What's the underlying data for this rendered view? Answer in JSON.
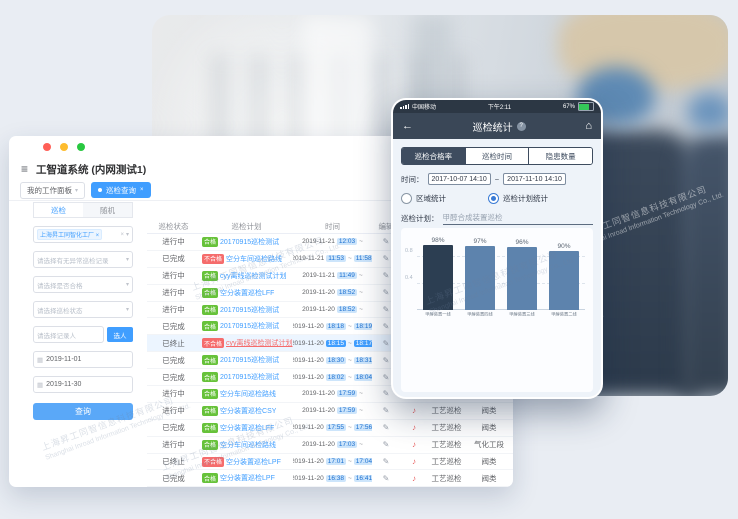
{
  "watermark": {
    "zh": "上海昇工同智信息科技有限公司",
    "en": "Shanghai Inroad Information Technology Co., Ltd."
  },
  "icons": {
    "hamburger": "≡",
    "caret": "▾",
    "close": "×",
    "back": "←",
    "home": "⌂",
    "help": "?",
    "calendar": "▦",
    "edit": "✎",
    "record": "♪",
    "tilde": "~",
    "dash": "~"
  },
  "desktop": {
    "app_title": "工智道系统 (内网测试1)",
    "workspace_tab": "我的工作面板",
    "active_tab": "巡检查询",
    "sidebar": {
      "tabs": [
        "巡检",
        "随机"
      ],
      "org_tag": "上海昇工同智化工厂",
      "selects": [
        "请选择有无异常巡检记录",
        "请选择是否合格",
        "请选择巡检状态"
      ],
      "recorder_placeholder": "请选择记录人",
      "pick_person_button": "选人",
      "date_from": "2019-11-01",
      "date_to": "2019-11-30",
      "search_button": "查询"
    },
    "table": {
      "headers": [
        "巡检状态",
        "巡检计划",
        "时间",
        "编辑",
        "",
        "",
        ""
      ],
      "rows": [
        {
          "status": "进行中",
          "badge": "合格",
          "ok": true,
          "plan": "20170915巡检测试",
          "date": "2019-11-21",
          "start": "12:03",
          "end": "",
          "type": "工艺巡检",
          "section": "阀类"
        },
        {
          "status": "已完成",
          "badge": "不合格",
          "ok": false,
          "plan": "空分车间巡检路线",
          "date": "2019-11-21",
          "start": "11:53",
          "end": "11:58",
          "type": "工艺巡检",
          "section": "阀类"
        },
        {
          "status": "进行中",
          "badge": "合格",
          "ok": true,
          "plan": "cyy离线巡检测试计划",
          "date": "2019-11-21",
          "start": "11:49",
          "end": "",
          "type": "工艺巡检",
          "section": "阀类"
        },
        {
          "status": "进行中",
          "badge": "合格",
          "ok": true,
          "plan": "空分装置巡检LFF",
          "date": "2019-11-20",
          "start": "18:52",
          "end": "",
          "type": "工艺巡检",
          "section": "阀类"
        },
        {
          "status": "进行中",
          "badge": "合格",
          "ok": true,
          "plan": "20170915巡检测试",
          "date": "2019-11-20",
          "start": "18:52",
          "end": "",
          "type": "工艺巡检",
          "section": "阀类"
        },
        {
          "status": "已完成",
          "badge": "合格",
          "ok": true,
          "plan": "20170915巡检测试",
          "date": "2019-11-20",
          "start": "18:18",
          "end": "18:19",
          "type": "工艺巡检",
          "section": "阀类"
        },
        {
          "status": "已终止",
          "badge": "不合格",
          "ok": false,
          "plan": "cyy离线巡检测试计划",
          "date": "2019-11-20",
          "start": "18:15",
          "end": "18:17",
          "selected": true,
          "plan_red": true,
          "type": "工艺巡检",
          "section": "阀类"
        },
        {
          "status": "已完成",
          "badge": "合格",
          "ok": true,
          "plan": "20170915巡检测试",
          "date": "2019-11-20",
          "start": "18:30",
          "end": "18:31",
          "type": "工艺巡检",
          "section": "阀类"
        },
        {
          "status": "已完成",
          "badge": "合格",
          "ok": true,
          "plan": "20170915巡检测试",
          "date": "2019-11-20",
          "start": "18:02",
          "end": "18:04",
          "type": "工艺巡检",
          "section": "阀类"
        },
        {
          "status": "进行中",
          "badge": "合格",
          "ok": true,
          "plan": "空分车间巡检路线",
          "date": "2019-11-20",
          "start": "17:59",
          "end": "",
          "type": "工艺巡检",
          "section": "阀类"
        },
        {
          "status": "进行中",
          "badge": "合格",
          "ok": true,
          "plan": "空分装置巡检CSY",
          "date": "2019-11-20",
          "start": "17:59",
          "end": "",
          "type": "工艺巡检",
          "section": "阀类"
        },
        {
          "status": "已完成",
          "badge": "合格",
          "ok": true,
          "plan": "空分装置巡检LFF",
          "date": "2019-11-20",
          "start": "17:55",
          "end": "17:56",
          "type": "工艺巡检",
          "section": "阀类"
        },
        {
          "status": "进行中",
          "badge": "合格",
          "ok": true,
          "plan": "空分车间巡检路线",
          "date": "2019-11-20",
          "start": "17:03",
          "end": "",
          "type": "工艺巡检",
          "section": "气化工段"
        },
        {
          "status": "已终止",
          "badge": "不合格",
          "ok": false,
          "plan": "空分装置巡检LPF",
          "date": "2019-11-20",
          "start": "17:01",
          "end": "17:04",
          "type": "工艺巡检",
          "section": "阀类"
        },
        {
          "status": "已完成",
          "badge": "合格",
          "ok": true,
          "plan": "空分装置巡检LPF",
          "date": "2019-11-20",
          "start": "16:38",
          "end": "16:41",
          "type": "工艺巡检",
          "section": "阀类"
        },
        {
          "status": "已终止",
          "badge": "不合格",
          "ok": false,
          "plan": "空分装置巡检LPF",
          "date": "2019-11-20",
          "start": "14:48",
          "end": "14:55",
          "type": "工艺巡检",
          "section": "阀类"
        }
      ]
    }
  },
  "phone": {
    "status_bar": {
      "carrier": "中国移动",
      "time": "下午2:11",
      "battery": "67%"
    },
    "nav": {
      "title": "巡检统计"
    },
    "segments": [
      {
        "label": "巡检合格率",
        "active": true
      },
      {
        "label": "巡检时间",
        "active": false
      },
      {
        "label": "隐患数量",
        "active": false
      }
    ],
    "time_label": "时间：",
    "date_from": "2017-10-07 14:10",
    "date_to": "2017-11-10 14:10",
    "radios": [
      {
        "label": "区域统计",
        "checked": false
      },
      {
        "label": "巡检计划统计",
        "checked": true
      }
    ],
    "plan_label": "巡检计划：",
    "plan_value": "甲醇合成装置巡检",
    "chart_data": {
      "type": "bar",
      "categories": [
        "甲醇装置一线",
        "甲醇装置四线",
        "甲醇装置三线",
        "甲醇装置二线"
      ],
      "values": [
        98,
        97,
        96,
        90
      ],
      "unit": "%",
      "bar_colors": [
        "#2c3e52",
        "#5d83ad",
        "#5d83ad",
        "#5d83ad"
      ],
      "ylim": [
        0,
        1
      ],
      "yticks": [
        0.4,
        0.8
      ],
      "grid": "dashed",
      "legend": null,
      "title": ""
    }
  }
}
